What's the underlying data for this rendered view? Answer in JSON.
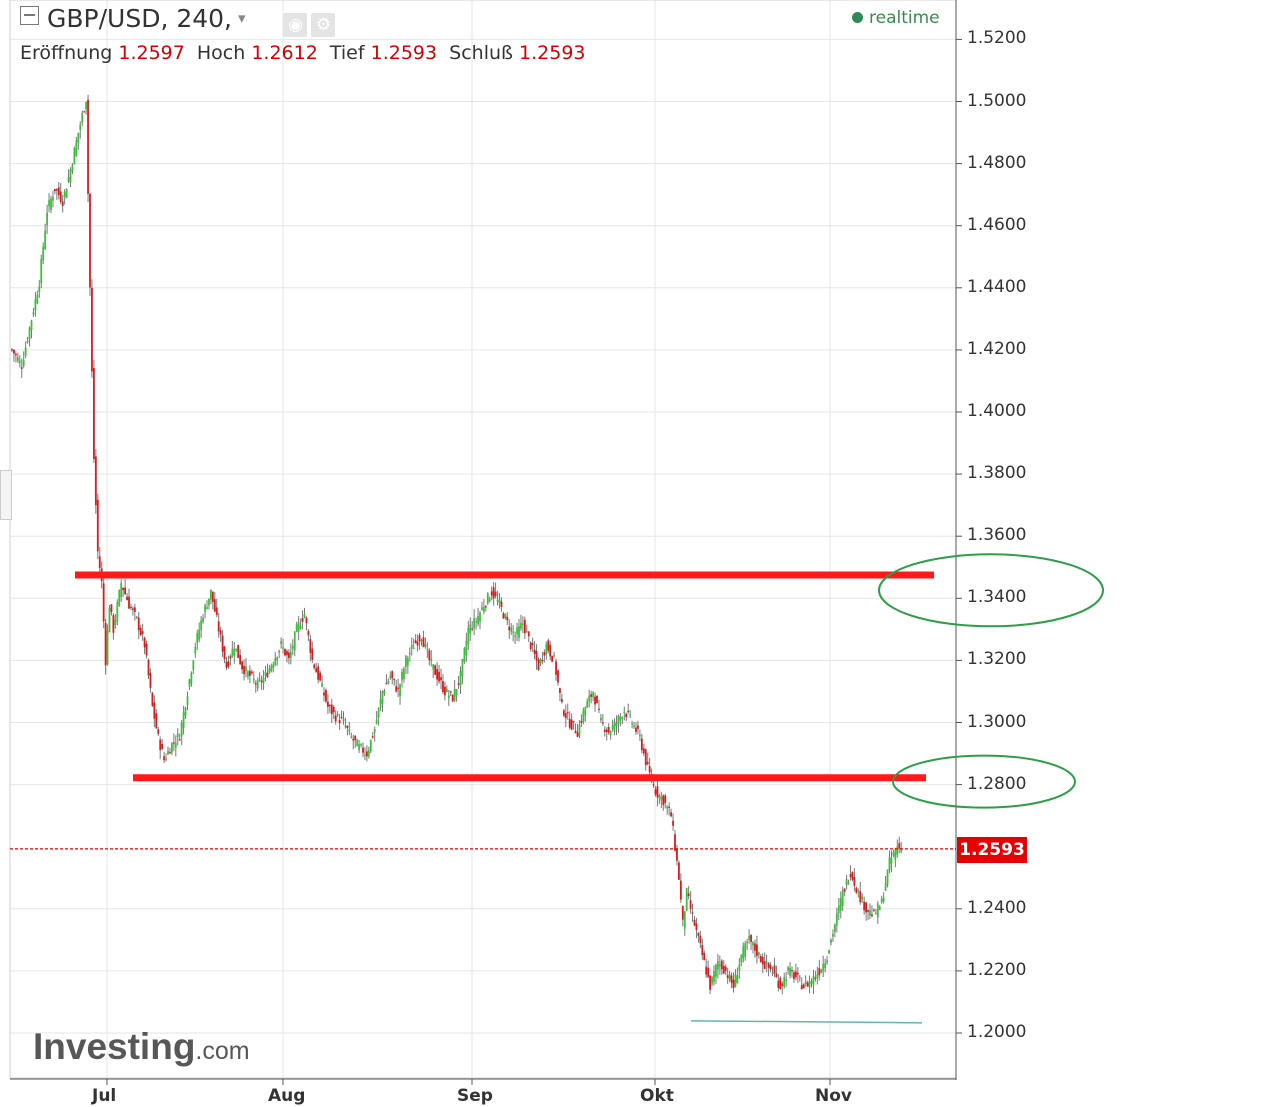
{
  "header": {
    "symbol": "GBP/USD, 240,",
    "caret": "▾",
    "ohlc": [
      {
        "label": "Eröffnung",
        "value": "1.2597"
      },
      {
        "label": "Hoch",
        "value": "1.2612"
      },
      {
        "label": "Tief",
        "value": "1.2593"
      },
      {
        "label": "Schluß",
        "value": "1.2593"
      }
    ],
    "realtime": "realtime",
    "icons": [
      "eye-icon",
      "gear-icon"
    ]
  },
  "price_label": "1.2593",
  "branding": {
    "logo_main": "Investing",
    "logo_suffix": ".com"
  },
  "colors": {
    "up": "#3cbf3c",
    "down": "#d81b1b",
    "level_line": "#ff1a1a",
    "ellipse": "#2e9e48",
    "last_price": "#e60000",
    "support_line": "#5fb8ac"
  },
  "chart_data": {
    "type": "candlestick",
    "title": "",
    "xlabel": "",
    "ylabel": "",
    "ylim": [
      1.19,
      1.53
    ],
    "y_ticks": [
      "1.5200",
      "1.5000",
      "1.4800",
      "1.4600",
      "1.4400",
      "1.4200",
      "1.4000",
      "1.3800",
      "1.3600",
      "1.3400",
      "1.3200",
      "1.3000",
      "1.2800",
      "1.2400",
      "1.2200",
      "1.2000"
    ],
    "x_ticks": [
      "Jul",
      "Aug",
      "Sep",
      "Okt",
      "Nov"
    ],
    "grid": true,
    "last_price": 1.2593,
    "series": [
      {
        "values": [
          [
            0,
            1.42
          ],
          [
            5,
            1.415
          ],
          [
            10,
            1.43
          ],
          [
            14,
            1.442
          ],
          [
            18,
            1.465
          ],
          [
            22,
            1.472
          ],
          [
            26,
            1.468
          ],
          [
            30,
            1.478
          ],
          [
            34,
            1.49
          ],
          [
            38,
            1.501
          ],
          [
            40,
            1.44
          ],
          [
            42,
            1.385
          ],
          [
            44,
            1.355
          ],
          [
            46,
            1.345
          ],
          [
            48,
            1.32
          ],
          [
            50,
            1.338
          ],
          [
            52,
            1.33
          ],
          [
            56,
            1.345
          ],
          [
            60,
            1.338
          ],
          [
            64,
            1.333
          ],
          [
            68,
            1.325
          ],
          [
            72,
            1.305
          ],
          [
            75,
            1.295
          ],
          [
            78,
            1.288
          ],
          [
            82,
            1.293
          ],
          [
            86,
            1.296
          ],
          [
            90,
            1.31
          ],
          [
            94,
            1.325
          ],
          [
            98,
            1.335
          ],
          [
            102,
            1.342
          ],
          [
            106,
            1.33
          ],
          [
            110,
            1.318
          ],
          [
            114,
            1.325
          ],
          [
            118,
            1.318
          ],
          [
            122,
            1.315
          ],
          [
            126,
            1.312
          ],
          [
            130,
            1.315
          ],
          [
            134,
            1.32
          ],
          [
            138,
            1.325
          ],
          [
            142,
            1.32
          ],
          [
            146,
            1.33
          ],
          [
            150,
            1.335
          ],
          [
            154,
            1.32
          ],
          [
            158,
            1.313
          ],
          [
            162,
            1.305
          ],
          [
            166,
            1.302
          ],
          [
            170,
            1.3
          ],
          [
            174,
            1.295
          ],
          [
            178,
            1.292
          ],
          [
            182,
            1.29
          ],
          [
            186,
            1.298
          ],
          [
            190,
            1.31
          ],
          [
            194,
            1.315
          ],
          [
            198,
            1.31
          ],
          [
            202,
            1.32
          ],
          [
            206,
            1.325
          ],
          [
            210,
            1.328
          ],
          [
            214,
            1.32
          ],
          [
            218,
            1.315
          ],
          [
            222,
            1.31
          ],
          [
            226,
            1.308
          ],
          [
            230,
            1.315
          ],
          [
            234,
            1.33
          ],
          [
            238,
            1.333
          ],
          [
            242,
            1.338
          ],
          [
            246,
            1.342
          ],
          [
            250,
            1.338
          ],
          [
            254,
            1.332
          ],
          [
            258,
            1.328
          ],
          [
            262,
            1.332
          ],
          [
            266,
            1.325
          ],
          [
            270,
            1.318
          ],
          [
            274,
            1.325
          ],
          [
            278,
            1.32
          ],
          [
            282,
            1.305
          ],
          [
            286,
            1.3
          ],
          [
            290,
            1.297
          ],
          [
            294,
            1.305
          ],
          [
            298,
            1.31
          ],
          [
            302,
            1.3
          ],
          [
            306,
            1.297
          ],
          [
            310,
            1.3
          ],
          [
            314,
            1.304
          ],
          [
            318,
            1.3
          ],
          [
            322,
            1.295
          ],
          [
            326,
            1.285
          ],
          [
            330,
            1.278
          ],
          [
            334,
            1.275
          ],
          [
            338,
            1.27
          ],
          [
            342,
            1.25
          ],
          [
            344,
            1.235
          ],
          [
            346,
            1.245
          ],
          [
            350,
            1.235
          ],
          [
            354,
            1.225
          ],
          [
            358,
            1.215
          ],
          [
            362,
            1.223
          ],
          [
            366,
            1.22
          ],
          [
            370,
            1.215
          ],
          [
            374,
            1.225
          ],
          [
            378,
            1.23
          ],
          [
            382,
            1.226
          ],
          [
            386,
            1.222
          ],
          [
            390,
            1.22
          ],
          [
            394,
            1.215
          ],
          [
            398,
            1.22
          ],
          [
            402,
            1.218
          ],
          [
            406,
            1.215
          ],
          [
            410,
            1.217
          ],
          [
            414,
            1.22
          ],
          [
            418,
            1.225
          ],
          [
            422,
            1.235
          ],
          [
            426,
            1.245
          ],
          [
            430,
            1.252
          ],
          [
            434,
            1.245
          ],
          [
            438,
            1.24
          ],
          [
            442,
            1.238
          ],
          [
            446,
            1.242
          ],
          [
            450,
            1.255
          ],
          [
            454,
            1.26
          ],
          [
            456,
            1.2593
          ]
        ]
      }
    ],
    "annotations": {
      "resistance": 1.3475,
      "support": 1.2822,
      "low_line": 1.2036,
      "circled_levels": [
        1.34,
        1.28
      ]
    }
  }
}
